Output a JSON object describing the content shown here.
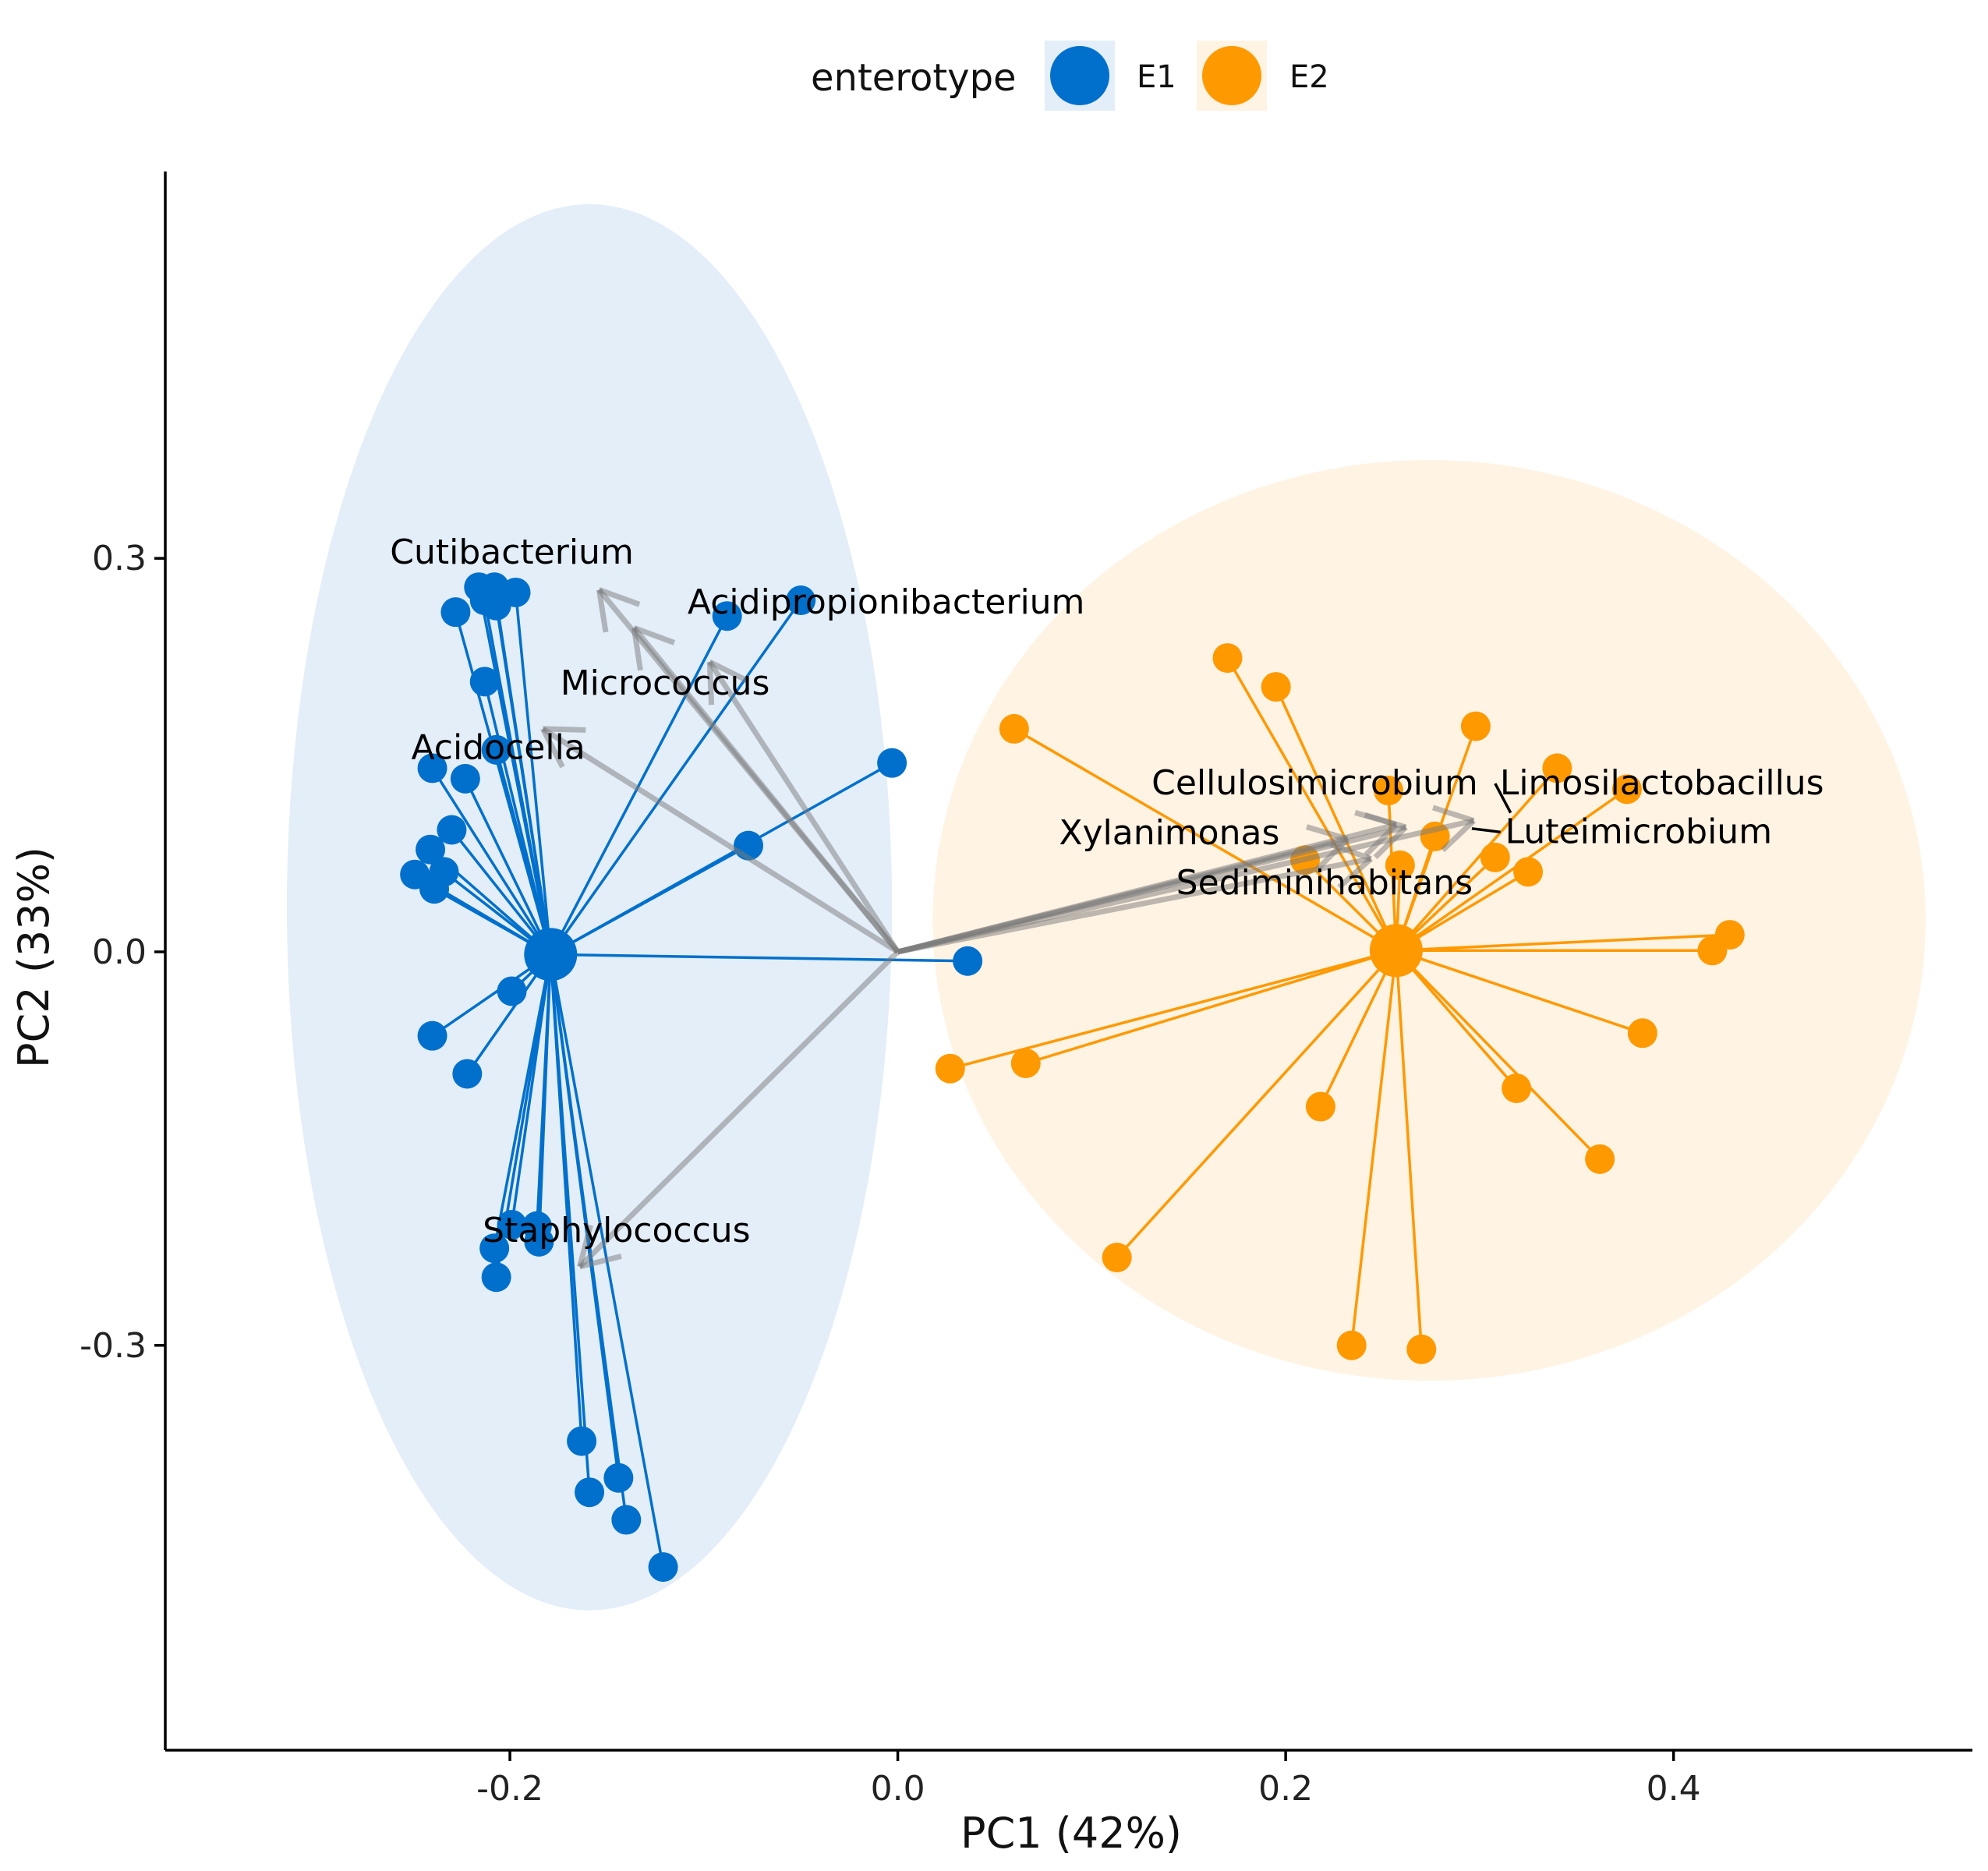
{
  "chart_data": {
    "type": "scatter",
    "subtype": "pca-biplot",
    "title": "",
    "xlabel": "PC1 (42%)",
    "ylabel": "PC2 (33%)",
    "xlim": [
      -0.3777,
      0.5541
    ],
    "ylim": [
      -0.6086,
      0.5949
    ],
    "xticks": [
      -0.2,
      0.0,
      0.2,
      0.4
    ],
    "xtick_labels": [
      "-0.2",
      "0.0",
      "0.2",
      "0.4"
    ],
    "yticks": [
      -0.3,
      0.0,
      0.3
    ],
    "ytick_labels": [
      "-0.3",
      "0.0",
      "0.3"
    ],
    "grid": false,
    "legend": {
      "title": "enterotype",
      "position": "top",
      "entries": [
        {
          "label": "E1",
          "color": "#0070CC",
          "fill": "#E3EEF9"
        },
        {
          "label": "E2",
          "color": "#FF9900",
          "fill": "#FFF3E3"
        }
      ]
    },
    "groups": [
      {
        "name": "E1",
        "color": "#0070CC",
        "ellipse_color": "#E3EEF9",
        "centroid": [
          -0.179,
          -0.002
        ],
        "ellipse": {
          "center": [
            -0.159,
            0.034
          ],
          "semi_axis_x": 0.156,
          "semi_axis_y": 0.536
        },
        "points": [
          [
            -0.216,
            0.278
          ],
          [
            -0.208,
            0.278
          ],
          [
            -0.197,
            0.274
          ],
          [
            -0.213,
            0.268
          ],
          [
            -0.207,
            0.264
          ],
          [
            -0.228,
            0.259
          ],
          [
            -0.088,
            0.256
          ],
          [
            -0.05,
            0.268
          ],
          [
            -0.213,
            0.206
          ],
          [
            -0.207,
            0.154
          ],
          [
            -0.24,
            0.14
          ],
          [
            -0.223,
            0.132
          ],
          [
            -0.23,
            0.093
          ],
          [
            -0.241,
            0.078
          ],
          [
            -0.249,
            0.059
          ],
          [
            -0.234,
            0.061
          ],
          [
            -0.239,
            0.048
          ],
          [
            -0.003,
            0.144
          ],
          [
            -0.077,
            0.081
          ],
          [
            0.036,
            -0.007
          ],
          [
            -0.199,
            -0.03
          ],
          [
            -0.24,
            -0.064
          ],
          [
            -0.222,
            -0.093
          ],
          [
            -0.199,
            -0.208
          ],
          [
            -0.186,
            -0.209
          ],
          [
            -0.208,
            -0.226
          ],
          [
            -0.185,
            -0.221
          ],
          [
            -0.207,
            -0.248
          ],
          [
            -0.163,
            -0.373
          ],
          [
            -0.144,
            -0.401
          ],
          [
            -0.159,
            -0.412
          ],
          [
            -0.14,
            -0.433
          ],
          [
            -0.121,
            -0.469
          ]
        ]
      },
      {
        "name": "E2",
        "color": "#FF9900",
        "ellipse_color": "#FFF3E3",
        "centroid": [
          0.257,
          0.001
        ],
        "ellipse": {
          "center": [
            0.274,
            0.024
          ],
          "semi_axis_x": 0.256,
          "semi_axis_y": 0.351
        },
        "points": [
          [
            0.17,
            0.224
          ],
          [
            0.195,
            0.202
          ],
          [
            0.06,
            0.17
          ],
          [
            0.298,
            0.172
          ],
          [
            0.34,
            0.14
          ],
          [
            0.376,
            0.124
          ],
          [
            0.253,
            0.123
          ],
          [
            0.277,
            0.088
          ],
          [
            0.21,
            0.07
          ],
          [
            0.259,
            0.066
          ],
          [
            0.308,
            0.072
          ],
          [
            0.325,
            0.061
          ],
          [
            0.429,
            0.013
          ],
          [
            0.42,
            0.001
          ],
          [
            0.384,
            -0.062
          ],
          [
            0.027,
            -0.089
          ],
          [
            0.066,
            -0.085
          ],
          [
            0.319,
            -0.104
          ],
          [
            0.218,
            -0.118
          ],
          [
            0.362,
            -0.158
          ],
          [
            0.113,
            -0.233
          ],
          [
            0.234,
            -0.3
          ],
          [
            0.27,
            -0.303
          ]
        ]
      }
    ],
    "loadings": [
      {
        "label": "Cutibacterium",
        "end": [
          -0.154,
          0.276
        ]
      },
      {
        "label": "Acidipropionibacterium",
        "end": [
          -0.136,
          0.247
        ]
      },
      {
        "label": "Micrococcus",
        "end": [
          -0.097,
          0.221
        ]
      },
      {
        "label": "Acidocella",
        "end": [
          -0.183,
          0.17
        ]
      },
      {
        "label": "Staphylococcus",
        "end": [
          -0.164,
          -0.24
        ]
      },
      {
        "label": "Cellulosimicrobium",
        "end": [
          0.257,
          0.097
        ]
      },
      {
        "label": "Limosilactobacillus",
        "end": [
          0.297,
          0.1
        ]
      },
      {
        "label": "Luteimicrobium",
        "end": [
          0.262,
          0.095
        ]
      },
      {
        "label": "Xylanimonas",
        "end": [
          0.232,
          0.086
        ]
      },
      {
        "label": "Sediminihabitans",
        "end": [
          0.244,
          0.071
        ]
      }
    ],
    "loading_labels": [
      {
        "label": "Cutibacterium",
        "pos": [
          -0.199,
          0.296
        ]
      },
      {
        "label": "Acidipropionibacterium",
        "pos": [
          -0.006,
          0.258
        ]
      },
      {
        "label": "Micrococcus",
        "pos": [
          -0.12,
          0.196
        ]
      },
      {
        "label": "Acidocella",
        "pos": [
          -0.206,
          0.147
        ]
      },
      {
        "label": "Staphylococcus",
        "pos": [
          -0.145,
          -0.221
        ]
      },
      {
        "label": "Cellulosimicrobium",
        "pos": [
          0.215,
          0.12
        ]
      },
      {
        "label": "Limosilactobacillus",
        "pos": [
          0.394,
          0.12
        ],
        "leader_to": [
          0.316,
          0.106
        ]
      },
      {
        "label": "Luteimicrobium",
        "pos": [
          0.382,
          0.083
        ],
        "leader_to": [
          0.296,
          0.094
        ]
      },
      {
        "label": "Xylanimonas",
        "pos": [
          0.14,
          0.082
        ]
      },
      {
        "label": "Sediminihabitans",
        "pos": [
          0.22,
          0.044
        ]
      }
    ]
  }
}
